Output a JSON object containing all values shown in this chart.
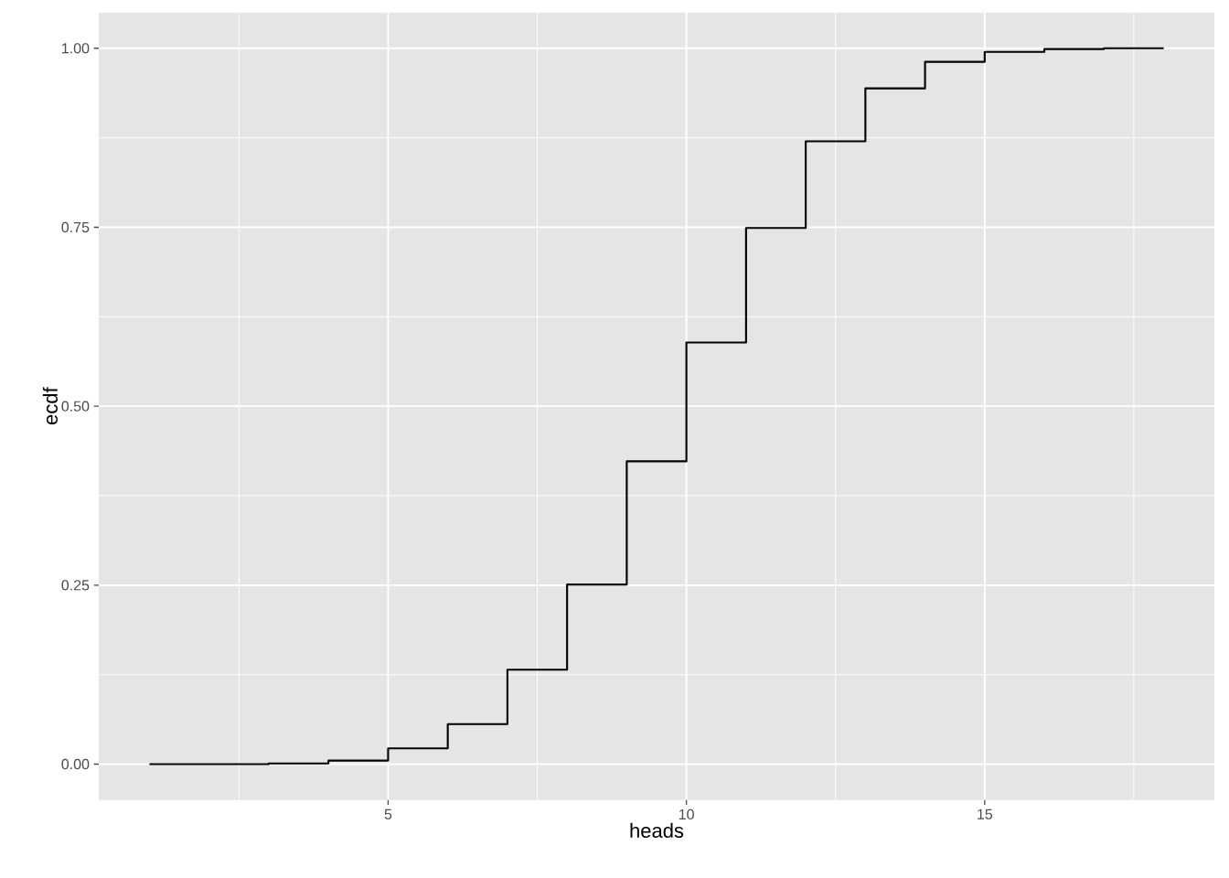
{
  "chart_data": {
    "type": "step",
    "xlabel": "heads",
    "ylabel": "ecdf",
    "x": [
      1,
      2,
      3,
      4,
      5,
      6,
      7,
      8,
      9,
      10,
      11,
      12,
      13,
      14,
      15,
      16,
      17,
      18
    ],
    "series": [
      {
        "color": "#000000",
        "values": [
          0,
          0,
          0.001,
          0.005,
          0.022,
          0.056,
          0.132,
          0.251,
          0.423,
          0.589,
          0.749,
          0.87,
          0.944,
          0.981,
          0.995,
          0.999,
          1.0,
          1.0
        ]
      }
    ],
    "xlim": [
      0.15,
      18.85
    ],
    "ylim": [
      -0.05,
      1.05
    ],
    "xticks": [
      5,
      10,
      15
    ],
    "yticks": [
      {
        "value": 0,
        "label": "0.00"
      },
      {
        "value": 0.25,
        "label": "0.25"
      },
      {
        "value": 0.5,
        "label": "0.50"
      },
      {
        "value": 0.75,
        "label": "0.75"
      },
      {
        "value": 1,
        "label": "1.00"
      }
    ],
    "grid": true,
    "marker": "none",
    "line_style": "solid"
  }
}
